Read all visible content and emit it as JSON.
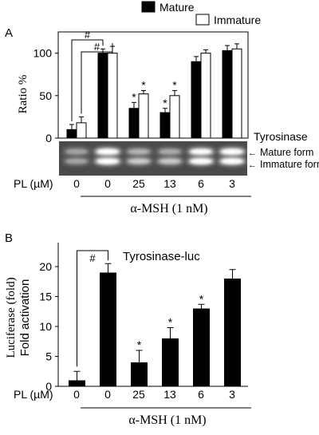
{
  "panel_a": {
    "label": "A",
    "legend": [
      {
        "name": "Mature",
        "fill": "#000000"
      },
      {
        "name": "Immature",
        "fill": "#ffffff"
      }
    ],
    "blot_title": "Tyrosinase",
    "blot_arrows": [
      "Mature form",
      "Immature form"
    ],
    "pl_label": "PL (µM)",
    "pl_values": [
      "0",
      "0",
      "25",
      "13",
      "6",
      "3"
    ],
    "group_label": "α-MSH (1 nM)"
  },
  "panel_b": {
    "label": "B",
    "pl_label": "PL (µM)",
    "pl_values": [
      "0",
      "0",
      "25",
      "13",
      "6",
      "3"
    ],
    "group_label": "α-MSH (1 nM)"
  },
  "chart_data": [
    {
      "type": "bar",
      "panel": "A",
      "categories": [
        "0",
        "0",
        "25",
        "13",
        "6",
        "3"
      ],
      "series": [
        {
          "name": "Mature",
          "color": "#000000",
          "values": [
            10,
            100,
            35,
            30,
            90,
            103
          ],
          "errors": [
            6,
            5,
            7,
            5,
            6,
            6
          ]
        },
        {
          "name": "Immature",
          "color": "#ffffff",
          "values": [
            18,
            100,
            52,
            50,
            100,
            105
          ],
          "errors": [
            7,
            8,
            4,
            6,
            4,
            6
          ]
        }
      ],
      "ylabel": "Ratio %",
      "ylim": [
        0,
        125
      ],
      "yticks": [
        0,
        50,
        100
      ],
      "significance": {
        "star_marker": "*",
        "star_bars": [
          [
            2,
            0
          ],
          [
            2,
            1
          ],
          [
            3,
            0
          ],
          [
            3,
            1
          ]
        ],
        "hash_marker": "#",
        "hash_brackets": [
          [
            [
              0,
              0
            ],
            [
              1,
              0
            ]
          ],
          [
            [
              0,
              1
            ],
            [
              1,
              1
            ]
          ]
        ]
      }
    },
    {
      "type": "bar",
      "panel": "B",
      "title": "Tyrosinase-luc",
      "categories": [
        "0",
        "0",
        "25",
        "13",
        "6",
        "3"
      ],
      "values": [
        1,
        19,
        4,
        8,
        13,
        18
      ],
      "errors": [
        1.5,
        1.5,
        2,
        1.8,
        0.7,
        1.5
      ],
      "ylabel_lines": [
        "Luciferase (fold)",
        "Fold activation"
      ],
      "ylim": [
        0,
        24
      ],
      "yticks": [
        0,
        5,
        10,
        15,
        20
      ],
      "significance": {
        "star_marker": "*",
        "star_bars": [
          2,
          3,
          4
        ],
        "hash_marker": "#",
        "hash_bracket": [
          0,
          1
        ]
      }
    }
  ]
}
